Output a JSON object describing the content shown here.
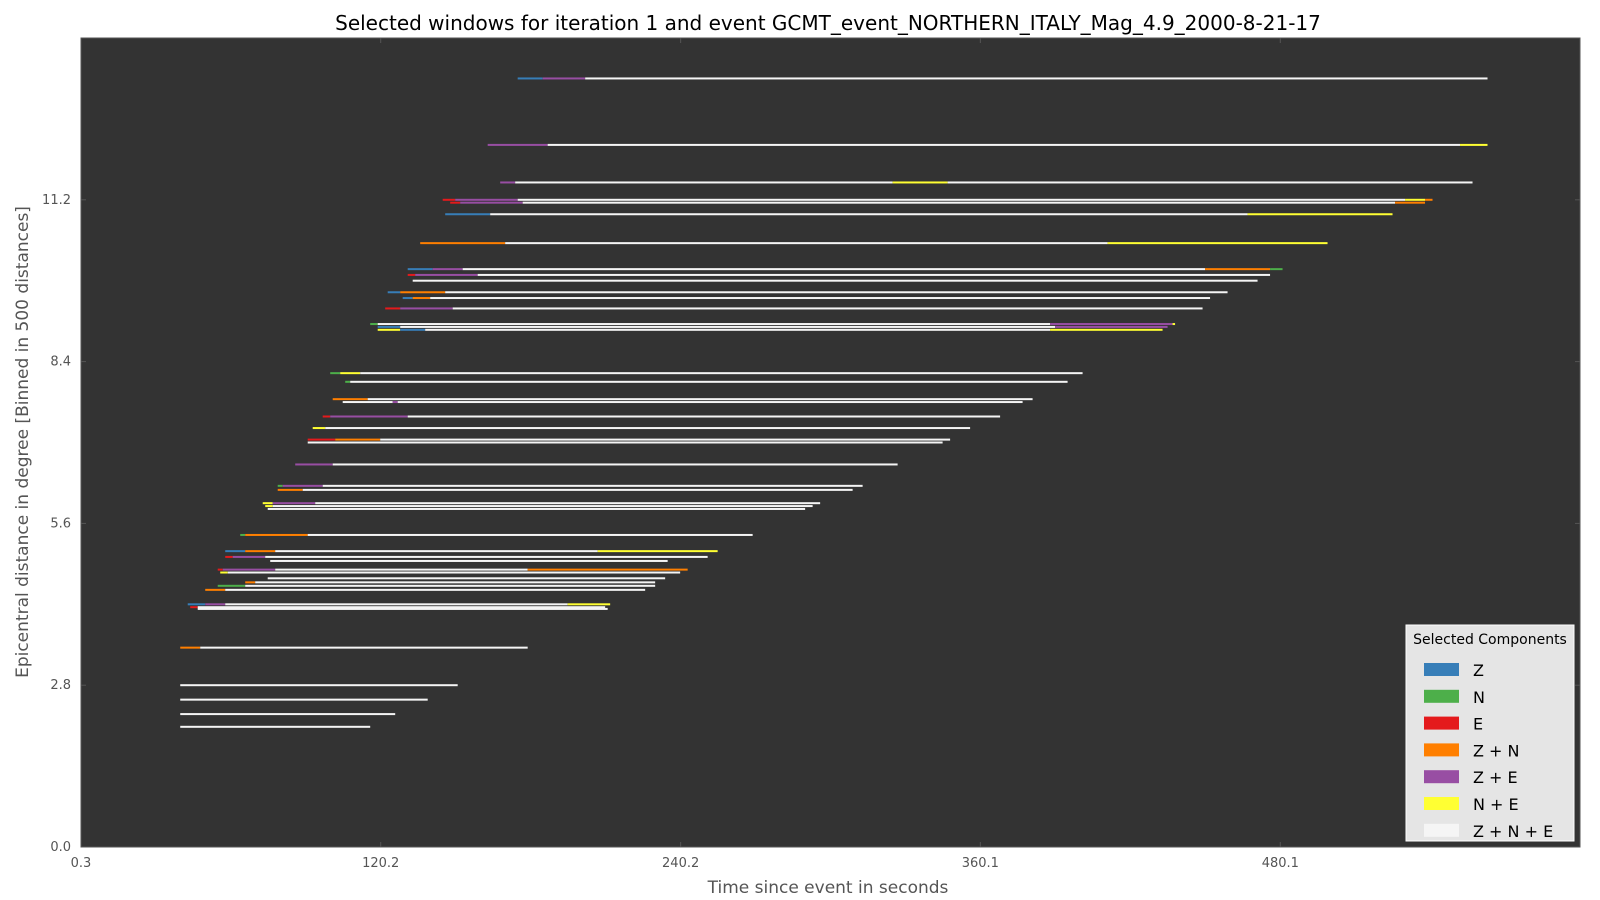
{
  "chart_data": {
    "type": "window-segments",
    "title": "Selected windows for iteration 1 and event GCMT_event_NORTHERN_ITALY_Mag_4.9_2000-8-21-17",
    "xlabel": "Time since event in seconds",
    "ylabel": "Epicentral distance in degree [Binned in 500 distances]",
    "xlim": [
      0.3,
      600
    ],
    "ylim": [
      0.0,
      14.0
    ],
    "xticks": [
      0.3,
      120.2,
      240.2,
      360.1,
      480.1
    ],
    "xtick_labels": [
      "0.3",
      "120.2",
      "240.2",
      "360.1",
      "480.1"
    ],
    "yticks": [
      0.0,
      2.8,
      5.6,
      8.4,
      11.2
    ],
    "ytick_labels": [
      "0.0",
      "2.8",
      "5.6",
      "8.4",
      "11.2"
    ],
    "grid": false,
    "legend": {
      "title": "Selected Components",
      "placement": "bottom-right",
      "entries": [
        {
          "key": "Z",
          "label": "Z",
          "color": "#377eb8"
        },
        {
          "key": "N",
          "label": "N",
          "color": "#4daf4a"
        },
        {
          "key": "E",
          "label": "E",
          "color": "#e41a1c"
        },
        {
          "key": "ZN",
          "label": "Z + N",
          "color": "#ff7f00"
        },
        {
          "key": "ZE",
          "label": "Z + E",
          "color": "#984ea3"
        },
        {
          "key": "NE",
          "label": "N + E",
          "color": "#ffff33"
        },
        {
          "key": "ZNE",
          "label": "Z + N + E",
          "color": "#f5f5f5"
        }
      ]
    },
    "plot_background": "#333333",
    "segments": [
      {
        "d": 13.3,
        "w": [
          [
            "Z",
            175,
            185
          ],
          [
            "ZE",
            185,
            202
          ],
          [
            "ZNE",
            202,
            563
          ]
        ]
      },
      {
        "d": 12.15,
        "w": [
          [
            "ZE",
            163,
            187
          ],
          [
            "ZNE",
            187,
            552
          ],
          [
            "NE",
            552,
            563
          ]
        ]
      },
      {
        "d": 11.5,
        "w": [
          [
            "ZE",
            168,
            174
          ],
          [
            "ZNE",
            174,
            325
          ],
          [
            "NE",
            325,
            347
          ],
          [
            "ZNE",
            347,
            557
          ]
        ]
      },
      {
        "d": 11.2,
        "w": [
          [
            "E",
            145,
            150
          ],
          [
            "ZE",
            150,
            175
          ],
          [
            "ZNE",
            175,
            530
          ],
          [
            "NE",
            530,
            538
          ],
          [
            "ZN",
            538,
            541
          ]
        ]
      },
      {
        "d": 11.15,
        "w": [
          [
            "E",
            148,
            152
          ],
          [
            "ZE",
            152,
            177
          ],
          [
            "ZNE",
            177,
            526
          ],
          [
            "ZN",
            526,
            538
          ]
        ]
      },
      {
        "d": 10.95,
        "w": [
          [
            "Z",
            146,
            164
          ],
          [
            "ZNE",
            164,
            467
          ],
          [
            "NE",
            467,
            525
          ]
        ]
      },
      {
        "d": 10.45,
        "w": [
          [
            "ZN",
            136,
            170
          ],
          [
            "ZNE",
            170,
            411
          ],
          [
            "NE",
            411,
            499
          ]
        ]
      },
      {
        "d": 10.0,
        "w": [
          [
            "Z",
            131,
            141
          ],
          [
            "ZE",
            141,
            153
          ],
          [
            "ZNE",
            153,
            450
          ],
          [
            "ZN",
            450,
            476
          ],
          [
            "N",
            476,
            481
          ]
        ]
      },
      {
        "d": 9.9,
        "w": [
          [
            "E",
            131,
            134
          ],
          [
            "ZE",
            134,
            159
          ],
          [
            "ZNE",
            159,
            476
          ]
        ]
      },
      {
        "d": 9.8,
        "w": [
          [
            "ZNE",
            133,
            471
          ]
        ]
      },
      {
        "d": 9.6,
        "w": [
          [
            "Z",
            123,
            128
          ],
          [
            "ZN",
            128,
            146
          ],
          [
            "ZNE",
            146,
            459
          ]
        ]
      },
      {
        "d": 9.5,
        "w": [
          [
            "Z",
            129,
            133
          ],
          [
            "ZN",
            133,
            140
          ],
          [
            "ZNE",
            140,
            452
          ]
        ]
      },
      {
        "d": 9.32,
        "w": [
          [
            "E",
            122,
            128
          ],
          [
            "ZE",
            128,
            149
          ],
          [
            "ZNE",
            149,
            449
          ]
        ]
      },
      {
        "d": 9.05,
        "w": [
          [
            "N",
            116,
            119
          ],
          [
            "ZNE",
            119,
            388
          ],
          [
            "ZE",
            388,
            437
          ],
          [
            "NE",
            437,
            438
          ]
        ]
      },
      {
        "d": 9.0,
        "w": [
          [
            "Z",
            119,
            128
          ],
          [
            "ZNE",
            128,
            390
          ],
          [
            "ZE",
            390,
            435
          ]
        ]
      },
      {
        "d": 8.95,
        "w": [
          [
            "NE",
            119,
            128
          ],
          [
            "Z",
            128,
            138
          ],
          [
            "ZNE",
            138,
            388
          ],
          [
            "NE",
            388,
            433
          ]
        ]
      },
      {
        "d": 8.2,
        "w": [
          [
            "N",
            100,
            104
          ],
          [
            "NE",
            104,
            112
          ],
          [
            "ZNE",
            112,
            401
          ]
        ]
      },
      {
        "d": 8.05,
        "w": [
          [
            "N",
            106,
            108
          ],
          [
            "ZNE",
            108,
            395
          ]
        ]
      },
      {
        "d": 7.75,
        "w": [
          [
            "ZN",
            101,
            115
          ],
          [
            "ZNE",
            115,
            381
          ]
        ]
      },
      {
        "d": 7.7,
        "w": [
          [
            "ZNE",
            105,
            125
          ],
          [
            "ZE",
            125,
            127
          ],
          [
            "ZNE",
            127,
            377
          ]
        ]
      },
      {
        "d": 7.45,
        "w": [
          [
            "E",
            97,
            100
          ],
          [
            "ZE",
            100,
            131
          ],
          [
            "ZNE",
            131,
            368
          ]
        ]
      },
      {
        "d": 7.25,
        "w": [
          [
            "NE",
            93,
            98
          ],
          [
            "ZNE",
            98,
            356
          ]
        ]
      },
      {
        "d": 7.05,
        "w": [
          [
            "E",
            91,
            102
          ],
          [
            "ZN",
            102,
            120
          ],
          [
            "ZNE",
            120,
            348
          ]
        ]
      },
      {
        "d": 7.0,
        "w": [
          [
            "ZNE",
            91,
            345
          ]
        ]
      },
      {
        "d": 6.62,
        "w": [
          [
            "ZE",
            86,
            101
          ],
          [
            "ZNE",
            101,
            327
          ]
        ]
      },
      {
        "d": 6.25,
        "w": [
          [
            "N",
            79,
            81
          ],
          [
            "ZE",
            81,
            97
          ],
          [
            "ZNE",
            97,
            313
          ]
        ]
      },
      {
        "d": 6.18,
        "w": [
          [
            "ZN",
            79,
            89
          ],
          [
            "ZNE",
            89,
            309
          ]
        ]
      },
      {
        "d": 5.95,
        "w": [
          [
            "NE",
            73,
            77
          ],
          [
            "ZE",
            77,
            94
          ],
          [
            "ZNE",
            94,
            296
          ]
        ]
      },
      {
        "d": 5.9,
        "w": [
          [
            "NE",
            74,
            77
          ],
          [
            "ZNE",
            77,
            293
          ]
        ]
      },
      {
        "d": 5.85,
        "w": [
          [
            "ZNE",
            75,
            290
          ]
        ]
      },
      {
        "d": 5.4,
        "w": [
          [
            "N",
            64,
            66
          ],
          [
            "ZN",
            66,
            91
          ],
          [
            "ZNE",
            91,
            269
          ]
        ]
      },
      {
        "d": 5.12,
        "w": [
          [
            "Z",
            58,
            66
          ],
          [
            "ZN",
            66,
            78
          ],
          [
            "ZNE",
            78,
            207
          ],
          [
            "NE",
            207,
            255
          ]
        ]
      },
      {
        "d": 5.02,
        "w": [
          [
            "E",
            58,
            61
          ],
          [
            "ZE",
            61,
            74
          ],
          [
            "ZNE",
            74,
            251
          ]
        ]
      },
      {
        "d": 4.95,
        "w": [
          [
            "ZNE",
            76,
            235
          ]
        ]
      },
      {
        "d": 4.8,
        "w": [
          [
            "E",
            55,
            57
          ],
          [
            "ZE",
            57,
            78
          ],
          [
            "ZNE",
            78,
            179
          ],
          [
            "ZN",
            179,
            243
          ]
        ]
      },
      {
        "d": 4.75,
        "w": [
          [
            "NE",
            56,
            59
          ],
          [
            "ZNE",
            59,
            240
          ]
        ]
      },
      {
        "d": 4.65,
        "w": [
          [
            "ZNE",
            75,
            234
          ]
        ]
      },
      {
        "d": 4.58,
        "w": [
          [
            "ZN",
            66,
            70
          ],
          [
            "ZNE",
            70,
            230
          ]
        ]
      },
      {
        "d": 4.52,
        "w": [
          [
            "N",
            55,
            66
          ],
          [
            "ZNE",
            66,
            230
          ]
        ]
      },
      {
        "d": 4.45,
        "w": [
          [
            "ZN",
            50,
            58
          ],
          [
            "ZNE",
            58,
            226
          ]
        ]
      },
      {
        "d": 4.2,
        "w": [
          [
            "Z",
            43,
            50
          ],
          [
            "ZE",
            50,
            58
          ],
          [
            "ZNE",
            58,
            195
          ],
          [
            "NE",
            195,
            212
          ]
        ]
      },
      {
        "d": 4.15,
        "w": [
          [
            "E",
            44,
            47
          ],
          [
            "ZNE",
            47,
            210
          ]
        ]
      },
      {
        "d": 4.12,
        "w": [
          [
            "ZNE",
            47,
            211
          ]
        ]
      },
      {
        "d": 3.45,
        "w": [
          [
            "ZN",
            40,
            48
          ],
          [
            "ZNE",
            48,
            179
          ]
        ]
      },
      {
        "d": 2.8,
        "w": [
          [
            "ZNE",
            40,
            151
          ]
        ]
      },
      {
        "d": 2.55,
        "w": [
          [
            "ZNE",
            40,
            139
          ]
        ]
      },
      {
        "d": 2.3,
        "w": [
          [
            "ZNE",
            40,
            126
          ]
        ]
      },
      {
        "d": 2.08,
        "w": [
          [
            "ZNE",
            40,
            116
          ]
        ]
      }
    ]
  }
}
